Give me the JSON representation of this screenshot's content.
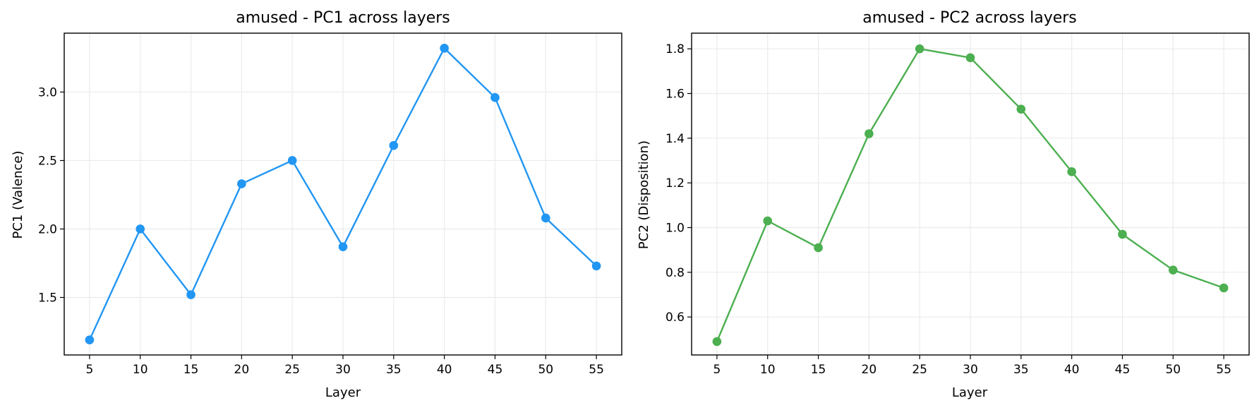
{
  "chart_data": [
    {
      "type": "line",
      "title": "amused - PC1 across layers",
      "xlabel": "Layer",
      "ylabel": "PC1 (Valence)",
      "x": [
        5,
        10,
        15,
        20,
        25,
        30,
        35,
        40,
        45,
        50,
        55
      ],
      "xticks": [
        "5",
        "10",
        "15",
        "20",
        "25",
        "30",
        "35",
        "40",
        "45",
        "50",
        "55"
      ],
      "yticks": [
        1.5,
        2.0,
        2.5,
        3.0
      ],
      "ytick_labels": [
        "1.5",
        "2.0",
        "2.5",
        "3.0"
      ],
      "xlim": [
        2.5,
        57.5
      ],
      "ylim": [
        1.08,
        3.43
      ],
      "grid": true,
      "series": [
        {
          "color": "#2196f3",
          "marker": "circle",
          "values": [
            1.19,
            2.0,
            1.52,
            2.33,
            2.5,
            1.87,
            2.61,
            3.32,
            2.96,
            2.08,
            1.73
          ]
        }
      ]
    },
    {
      "type": "line",
      "title": "amused - PC2 across layers",
      "xlabel": "Layer",
      "ylabel": "PC2 (Disposition)",
      "x": [
        5,
        10,
        15,
        20,
        25,
        30,
        35,
        40,
        45,
        50,
        55
      ],
      "xticks": [
        "5",
        "10",
        "15",
        "20",
        "25",
        "30",
        "35",
        "40",
        "45",
        "50",
        "55"
      ],
      "yticks": [
        0.6,
        0.8,
        1.0,
        1.2,
        1.4,
        1.6,
        1.8
      ],
      "ytick_labels": [
        "0.6",
        "0.8",
        "1.0",
        "1.2",
        "1.4",
        "1.6",
        "1.8"
      ],
      "xlim": [
        2.5,
        57.5
      ],
      "ylim": [
        0.43,
        1.87
      ],
      "grid": true,
      "series": [
        {
          "color": "#4caf50",
          "marker": "circle",
          "values": [
            0.49,
            1.03,
            0.91,
            1.42,
            1.8,
            1.76,
            1.53,
            1.25,
            0.97,
            0.81,
            0.73
          ]
        }
      ]
    }
  ]
}
